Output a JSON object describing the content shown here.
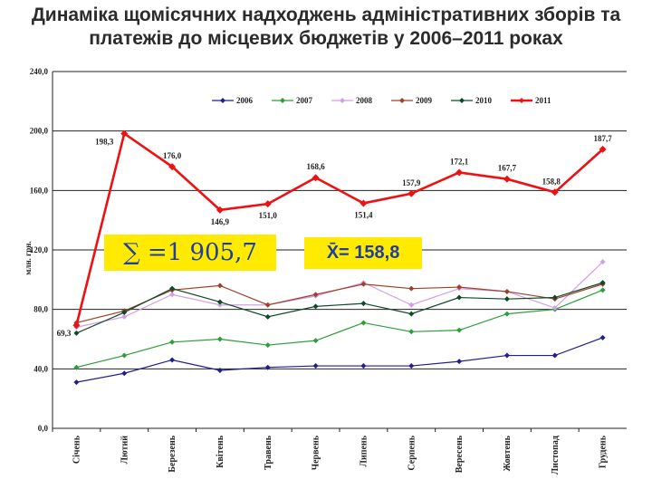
{
  "title": {
    "line1": "Динаміка щомісячних надходжень адміністративних зборів та",
    "line2": "платежів до місцевих бюджетів у 2006–2011  роках"
  },
  "annotations": {
    "sum_text": "∑ =1 905,7",
    "mean_text": "X̄= 158,8"
  },
  "chart_data": {
    "type": "line",
    "ylabel": "млн. грн.",
    "ylim": [
      0,
      240
    ],
    "yticks": [
      "0,0",
      "40,0",
      "80,0",
      "120,0",
      "160,0",
      "200,0",
      "240,0"
    ],
    "grid": true,
    "legend_position": "top",
    "categories": [
      "Січень",
      "Лютий",
      "Березень",
      "Квітень",
      "Травень",
      "Червень",
      "Липень",
      "Серпень",
      "Вересень",
      "Жовтень",
      "Листопад",
      "Грудень"
    ],
    "series": [
      {
        "name": "2006",
        "color": "#1f1f8f",
        "marker": "diamond",
        "values": [
          31,
          37,
          46,
          39,
          41,
          42,
          42,
          42,
          45,
          49,
          49,
          61
        ]
      },
      {
        "name": "2007",
        "color": "#2e9e3a",
        "marker": "diamond",
        "values": [
          41,
          49,
          58,
          60,
          56,
          59,
          71,
          65,
          66,
          77,
          80,
          93
        ]
      },
      {
        "name": "2008",
        "color": "#d49ee8",
        "marker": "diamond",
        "values": [
          68,
          75,
          90,
          83,
          83,
          89,
          98,
          83,
          94,
          92,
          81,
          112
        ]
      },
      {
        "name": "2009",
        "color": "#a0402a",
        "marker": "diamond",
        "values": [
          71,
          79,
          93,
          96,
          83,
          90,
          97,
          94,
          95,
          92,
          87,
          97
        ]
      },
      {
        "name": "2010",
        "color": "#0e4a2a",
        "marker": "diamond",
        "values": [
          64,
          78,
          94,
          85,
          75,
          82,
          84,
          77,
          88,
          87,
          88,
          98
        ]
      },
      {
        "name": "2011",
        "color": "#ee1111",
        "marker": "diamond",
        "values": [
          69.3,
          198.3,
          176.0,
          146.9,
          151.0,
          168.6,
          151.4,
          157.9,
          172.1,
          167.7,
          158.8,
          187.7
        ],
        "labels": [
          "69,3",
          "198,3",
          "176,0",
          "146,9",
          "151,0",
          "168,6",
          "151,4",
          "157,9",
          "172,1",
          "167,7",
          "158,8",
          "187,7"
        ]
      }
    ]
  }
}
